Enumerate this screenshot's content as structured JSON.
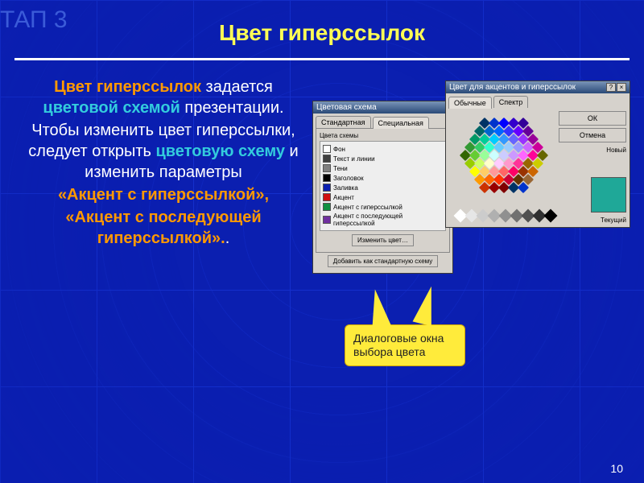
{
  "step_label": "ТАП 3",
  "title": "Цвет гиперссылок",
  "body": {
    "line1a": "Цвет гиперссылок",
    "line1b": " задается ",
    "line1c": "цветовой схемой",
    "line1d": " презентации.",
    "line2a": "Чтобы изменить цвет гиперссылки, следует открыть ",
    "line2b": "цветовую схему",
    "line2c": " и изменить параметры",
    "accent1": "«Акцент с гиперссылкой»,",
    "accent2": "«Акцент с последующей гиперссылкой».",
    "dot": "."
  },
  "dlg1": {
    "title": "Цветовая схема",
    "tab_standard": "Стандартная",
    "tab_special": "Специальная",
    "group_label": "Цвета схемы",
    "items": [
      {
        "label": "Фон",
        "color": "#ffffff"
      },
      {
        "label": "Текст и линии",
        "color": "#404040"
      },
      {
        "label": "Тени",
        "color": "#808080"
      },
      {
        "label": "Заголовок",
        "color": "#000000"
      },
      {
        "label": "Заливка",
        "color": "#0b1fb0"
      },
      {
        "label": "Акцент",
        "color": "#d01010"
      },
      {
        "label": "Акцент с гиперссылкой",
        "color": "#109040"
      },
      {
        "label": "Акцент с последующей гиперссылкой",
        "color": "#7030a0"
      }
    ],
    "btn_change": "Изменить цвет…",
    "btn_add": "Добавить как стандартную схему"
  },
  "dlg2": {
    "title": "Цвет для акцентов и гиперссылок",
    "tab_regular": "Обычные",
    "tab_spectrum": "Спектр",
    "btn_ok": "ОК",
    "btn_cancel": "Отмена",
    "label_new": "Новый",
    "label_current": "Текущий",
    "preview_new": "#1fa898",
    "preview_current": "#1fa898",
    "bottom_row": [
      "#ffffff",
      "#e6e6e6",
      "#cccccc",
      "#b0b0b0",
      "#909090",
      "#707070",
      "#505050",
      "#303030",
      "#000000"
    ]
  },
  "callout": "Диалоговые окна выбора цвета",
  "slide_number": "10",
  "hexagon_colors": [
    "#003366",
    "#0033cc",
    "#0000ff",
    "#3300cc",
    "#330099",
    "#006666",
    "#0066cc",
    "#0066ff",
    "#3333ff",
    "#6600ff",
    "#660099",
    "#009966",
    "#00cc99",
    "#00ccff",
    "#3399ff",
    "#6666ff",
    "#9933ff",
    "#990099",
    "#339933",
    "#33cc66",
    "#33ffcc",
    "#66ccff",
    "#99ccff",
    "#9999ff",
    "#cc66ff",
    "#cc0099",
    "#336600",
    "#66cc33",
    "#99ff99",
    "#ccffff",
    "#ccccff",
    "#cc99ff",
    "#ff66ff",
    "#ff0099",
    "#666600",
    "#99cc00",
    "#ccff66",
    "#ffffcc",
    "#ffccff",
    "#ff99cc",
    "#ff3399",
    "#996600",
    "#cccc00",
    "#ffff00",
    "#ffcc66",
    "#ff9999",
    "#ff6666",
    "#ff0066",
    "#993300",
    "#cc6600",
    "#ff9900",
    "#ff6600",
    "#ff3300",
    "#cc0033",
    "#663300",
    "#996633",
    "#cc3300",
    "#990000",
    "#800000"
  ]
}
